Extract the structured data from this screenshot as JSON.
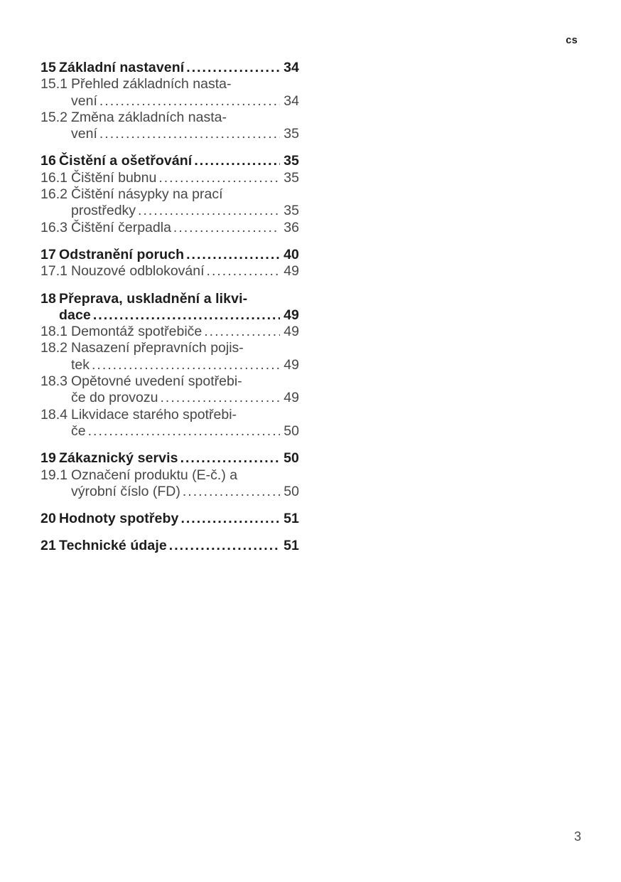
{
  "meta": {
    "language_code": "cs",
    "page_number": "3"
  },
  "colors": {
    "heading_text": "#1c1c1c",
    "body_text": "#474747",
    "background": "#ffffff"
  },
  "toc": {
    "sections": [
      {
        "number": "15",
        "title": "Základní nastavení",
        "page": "34",
        "items": [
          {
            "number": "15.1",
            "line1": "Přehled základních nasta-",
            "line2": "vení",
            "page": "34"
          },
          {
            "number": "15.2",
            "line1": "Změna základních nasta-",
            "line2": "vení",
            "page": "35"
          }
        ]
      },
      {
        "number": "16",
        "title": "Čistění a ošetřování",
        "page": "35",
        "items": [
          {
            "number": "16.1",
            "line1": "Čištění bubnu",
            "page": "35"
          },
          {
            "number": "16.2",
            "line1": "Čištění násypky na prací",
            "line2": "prostředky",
            "page": "35"
          },
          {
            "number": "16.3",
            "line1": "Čištění čerpadla",
            "page": "36"
          }
        ]
      },
      {
        "number": "17",
        "title": "Odstranění poruch",
        "page": "40",
        "items": [
          {
            "number": "17.1",
            "line1": "Nouzové odblokování",
            "page": "49"
          }
        ]
      },
      {
        "number": "18",
        "title": "Přeprava, uskladnění a likvi-",
        "title_line2": "dace",
        "page": "49",
        "items": [
          {
            "number": "18.1",
            "line1": "Demontáž spotřebiče",
            "page": "49"
          },
          {
            "number": "18.2",
            "line1": "Nasazení přepravních pojis-",
            "line2": "tek",
            "page": "49"
          },
          {
            "number": "18.3",
            "line1": "Opětovné uvedení spotřebi-",
            "line2": "če do provozu",
            "page": "49"
          },
          {
            "number": "18.4",
            "line1": "Likvidace starého spotřebi-",
            "line2": "če",
            "page": "50"
          }
        ]
      },
      {
        "number": "19",
        "title": "Zákaznický servis",
        "page": "50",
        "items": [
          {
            "number": "19.1",
            "line1": "Označení produktu (E-č.) a",
            "line2": "výrobní číslo (FD)",
            "page": "50"
          }
        ]
      },
      {
        "number": "20",
        "title": "Hodnoty spotřeby",
        "page": "51",
        "items": []
      },
      {
        "number": "21",
        "title": "Technické údaje",
        "page": "51",
        "items": []
      }
    ]
  }
}
